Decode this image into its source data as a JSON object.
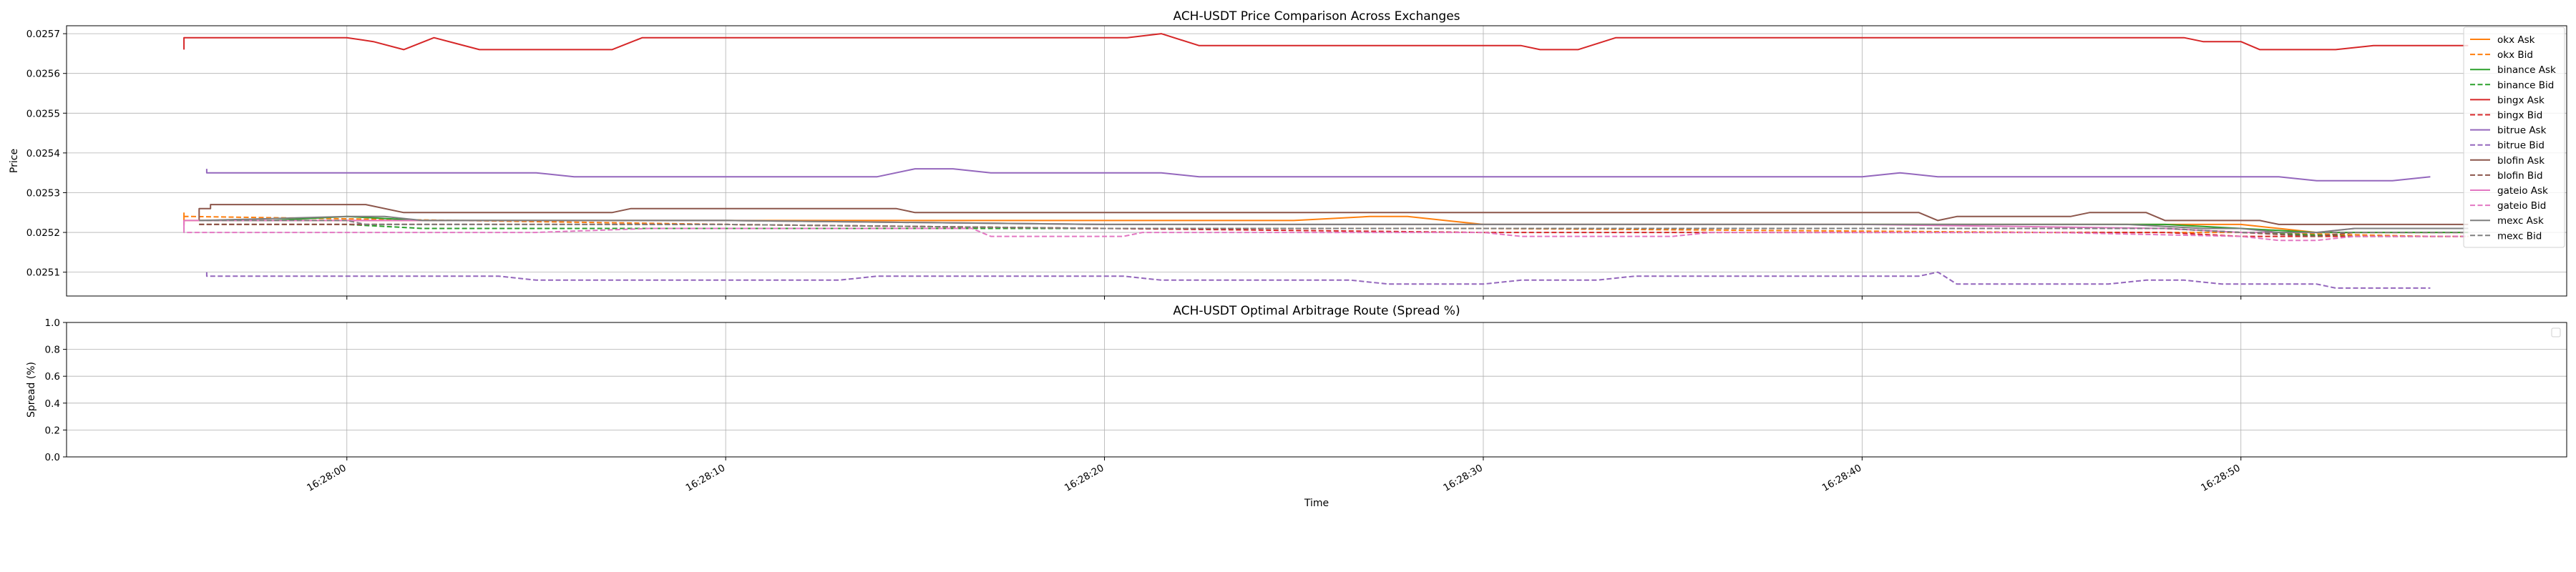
{
  "chart_data": [
    {
      "type": "line",
      "title": "ACH-USDT Price Comparison Across Exchanges",
      "xlabel": "",
      "ylabel": "Price",
      "ylim": [
        0.02504,
        0.02572
      ],
      "yticks": [
        0.0251,
        0.0252,
        0.0253,
        0.0254,
        0.0255,
        0.0256,
        0.0257
      ],
      "ytick_labels": [
        "0.0251",
        "0.0252",
        "0.0253",
        "0.0254",
        "0.0255",
        "0.0256",
        "0.0257"
      ],
      "xlim": [
        -7.4,
        58.6
      ],
      "x_unit": "seconds after 16:28:00",
      "grid": true,
      "legend_position": "right, outside top",
      "series": [
        {
          "name": "okx Ask",
          "color": "#ff7f0e",
          "dash": false,
          "x": [
            -4.3,
            -4.3,
            -4.1,
            10,
            25,
            27,
            28,
            30,
            50,
            51,
            52,
            53,
            56
          ],
          "y": [
            0.02525,
            0.02523,
            0.02523,
            0.02523,
            0.02523,
            0.02524,
            0.02524,
            0.02522,
            0.02522,
            0.02521,
            0.0252,
            0.0252,
            0.0252
          ]
        },
        {
          "name": "okx Bid",
          "color": "#ff7f0e",
          "dash": true,
          "x": [
            -4.3,
            -4.3,
            -4.1,
            10,
            20,
            30,
            45,
            50,
            55,
            56
          ],
          "y": [
            0.02522,
            0.02524,
            0.02524,
            0.02522,
            0.02521,
            0.02521,
            0.0252,
            0.0252,
            0.02519,
            0.02519
          ]
        },
        {
          "name": "binance Ask",
          "color": "#2ca02c",
          "dash": false,
          "x": [
            -3.9,
            -2,
            0,
            2,
            10,
            20,
            30,
            40,
            48,
            50,
            52,
            54,
            56
          ],
          "y": [
            0.02523,
            0.02523,
            0.02524,
            0.02523,
            0.02523,
            0.02522,
            0.02522,
            0.02522,
            0.02522,
            0.02521,
            0.0252,
            0.0252,
            0.0252
          ]
        },
        {
          "name": "binance Bid",
          "color": "#2ca02c",
          "dash": true,
          "x": [
            -3.9,
            0,
            2,
            10,
            20,
            30,
            40,
            48,
            50,
            53,
            56
          ],
          "y": [
            0.02522,
            0.02522,
            0.02521,
            0.02521,
            0.02521,
            0.02521,
            0.02521,
            0.02521,
            0.0252,
            0.02519,
            0.02519
          ]
        },
        {
          "name": "bingx Ask",
          "color": "#d62728",
          "dash": false,
          "x": [
            -4.3,
            -4.3,
            -4.1,
            0,
            0.7,
            1.5,
            2.3,
            3.5,
            7.0,
            7.8,
            20.6,
            21.5,
            22.5,
            31.0,
            31.5,
            32.5,
            33.5,
            48.5,
            49.0,
            49.9,
            50.0,
            50.5,
            52.5,
            53.5,
            56
          ],
          "y": [
            0.02566,
            0.02569,
            0.02569,
            0.02569,
            0.02568,
            0.02566,
            0.02569,
            0.02566,
            0.02566,
            0.02569,
            0.02569,
            0.0257,
            0.02567,
            0.02567,
            0.02566,
            0.02566,
            0.02569,
            0.02569,
            0.02568,
            0.02568,
            0.02568,
            0.02566,
            0.02566,
            0.02567,
            0.02567
          ]
        },
        {
          "name": "bingx Bid",
          "color": "#d62728",
          "dash": true,
          "x": [
            -3.9,
            5,
            10,
            20,
            30,
            40,
            48,
            50,
            52,
            56
          ],
          "y": [
            0.02522,
            0.02522,
            0.02522,
            0.02521,
            0.0252,
            0.0252,
            0.0252,
            0.02519,
            0.02519,
            0.02519
          ]
        },
        {
          "name": "bitrue Ask",
          "color": "#9467bd",
          "dash": false,
          "x": [
            -3.7,
            -3.7,
            -3.6,
            5,
            6,
            14,
            15,
            16,
            17,
            21.5,
            22.5,
            40,
            41,
            42,
            49,
            51,
            52,
            53,
            54,
            55
          ],
          "y": [
            0.02536,
            0.02535,
            0.02535,
            0.02535,
            0.02534,
            0.02534,
            0.02536,
            0.02536,
            0.02535,
            0.02535,
            0.02534,
            0.02534,
            0.02535,
            0.02534,
            0.02534,
            0.02534,
            0.02533,
            0.02533,
            0.02533,
            0.02534
          ]
        },
        {
          "name": "bitrue Bid",
          "color": "#9467bd",
          "dash": true,
          "x": [
            -3.7,
            -3.7,
            -3.6,
            4.0,
            5.0,
            13.0,
            14.0,
            20.5,
            21.5,
            26.5,
            27.5,
            30.0,
            31.0,
            33.0,
            34.0,
            41.5,
            42.0,
            42.5,
            46.5,
            47.5,
            48.5,
            49.5,
            52.0,
            52.5,
            55.0
          ],
          "y": [
            0.0251,
            0.02509,
            0.02509,
            0.02509,
            0.02508,
            0.02508,
            0.02509,
            0.02509,
            0.02508,
            0.02508,
            0.02507,
            0.02507,
            0.02508,
            0.02508,
            0.02509,
            0.02509,
            0.0251,
            0.02507,
            0.02507,
            0.02508,
            0.02508,
            0.02507,
            0.02507,
            0.02506,
            0.02506
          ]
        },
        {
          "name": "blofin Ask",
          "color": "#8c564b",
          "dash": false,
          "x": [
            -3.9,
            -3.9,
            -3.6,
            -3.6,
            0.5,
            1.5,
            7.0,
            7.5,
            14.5,
            15.0,
            41.5,
            42.0,
            42.5,
            45.5,
            46.0,
            47.5,
            48.0,
            50.5,
            51.0,
            56.0
          ],
          "y": [
            0.02523,
            0.02526,
            0.02526,
            0.02527,
            0.02527,
            0.02525,
            0.02525,
            0.02526,
            0.02526,
            0.02525,
            0.02525,
            0.02523,
            0.02524,
            0.02524,
            0.02525,
            0.02525,
            0.02523,
            0.02523,
            0.02522,
            0.02522
          ]
        },
        {
          "name": "blofin Bid",
          "color": "#8c564b",
          "dash": true,
          "x": [
            -3.9,
            0,
            1.5,
            10,
            20,
            30,
            40,
            48,
            50,
            52,
            53,
            56
          ],
          "y": [
            0.02522,
            0.02522,
            0.02522,
            0.02522,
            0.02521,
            0.02521,
            0.02521,
            0.02521,
            0.0252,
            0.02519,
            0.0252,
            0.0252
          ]
        },
        {
          "name": "gateio Ask",
          "color": "#e377c2",
          "dash": false,
          "x": [
            -4.3,
            -4.3,
            -4.1,
            10,
            20,
            30,
            40,
            48,
            50,
            52,
            53,
            56
          ],
          "y": [
            0.02521,
            0.02523,
            0.02523,
            0.02523,
            0.02522,
            0.02522,
            0.02522,
            0.02521,
            0.0252,
            0.0252,
            0.02521,
            0.02521
          ]
        },
        {
          "name": "gateio Bid",
          "color": "#e377c2",
          "dash": true,
          "x": [
            -4.3,
            -4.3,
            -4.1,
            5,
            8,
            10,
            16.5,
            17,
            20.5,
            21,
            30,
            31,
            35,
            36,
            45,
            50,
            51,
            52,
            53,
            56
          ],
          "y": [
            0.02523,
            0.0252,
            0.0252,
            0.0252,
            0.02521,
            0.02521,
            0.02521,
            0.02519,
            0.02519,
            0.0252,
            0.0252,
            0.02519,
            0.02519,
            0.0252,
            0.0252,
            0.02519,
            0.02518,
            0.02518,
            0.02519,
            0.02519
          ]
        },
        {
          "name": "mexc Ask",
          "color": "#7f7f7f",
          "dash": false,
          "x": [
            -3.9,
            0,
            1.0,
            2.0,
            10,
            20,
            30,
            40,
            47,
            49,
            50,
            51,
            52,
            53,
            56
          ],
          "y": [
            0.02523,
            0.02524,
            0.02524,
            0.02523,
            0.02523,
            0.02522,
            0.02522,
            0.02522,
            0.02522,
            0.02521,
            0.02521,
            0.0252,
            0.0252,
            0.02521,
            0.02521
          ]
        },
        {
          "name": "mexc Bid",
          "color": "#7f7f7f",
          "dash": true,
          "x": [
            -3.9,
            0,
            0.5,
            10,
            20,
            30,
            40,
            48,
            50,
            52,
            53,
            56
          ],
          "y": [
            0.02523,
            0.02523,
            0.02522,
            0.02522,
            0.02521,
            0.02521,
            0.02521,
            0.02521,
            0.0252,
            0.0252,
            0.0252,
            0.0252
          ]
        }
      ]
    },
    {
      "type": "line",
      "title": "ACH-USDT Optimal Arbitrage Route (Spread %)",
      "xlabel": "Time",
      "ylabel": "Spread (%)",
      "ylim": [
        0.0,
        1.0
      ],
      "yticks": [
        0.0,
        0.2,
        0.4,
        0.6,
        0.8,
        1.0
      ],
      "ytick_labels": [
        "0.0",
        "0.2",
        "0.4",
        "0.6",
        "0.8",
        "1.0"
      ],
      "xlim": [
        -7.4,
        58.6
      ],
      "xticks": [
        0,
        10,
        20,
        30,
        40,
        50
      ],
      "xtick_labels": [
        "16:28:00",
        "16:28:10",
        "16:28:20",
        "16:28:30",
        "16:28:40",
        "16:28:50"
      ],
      "grid": true,
      "legend_position": "top-right (empty)",
      "series": []
    }
  ]
}
